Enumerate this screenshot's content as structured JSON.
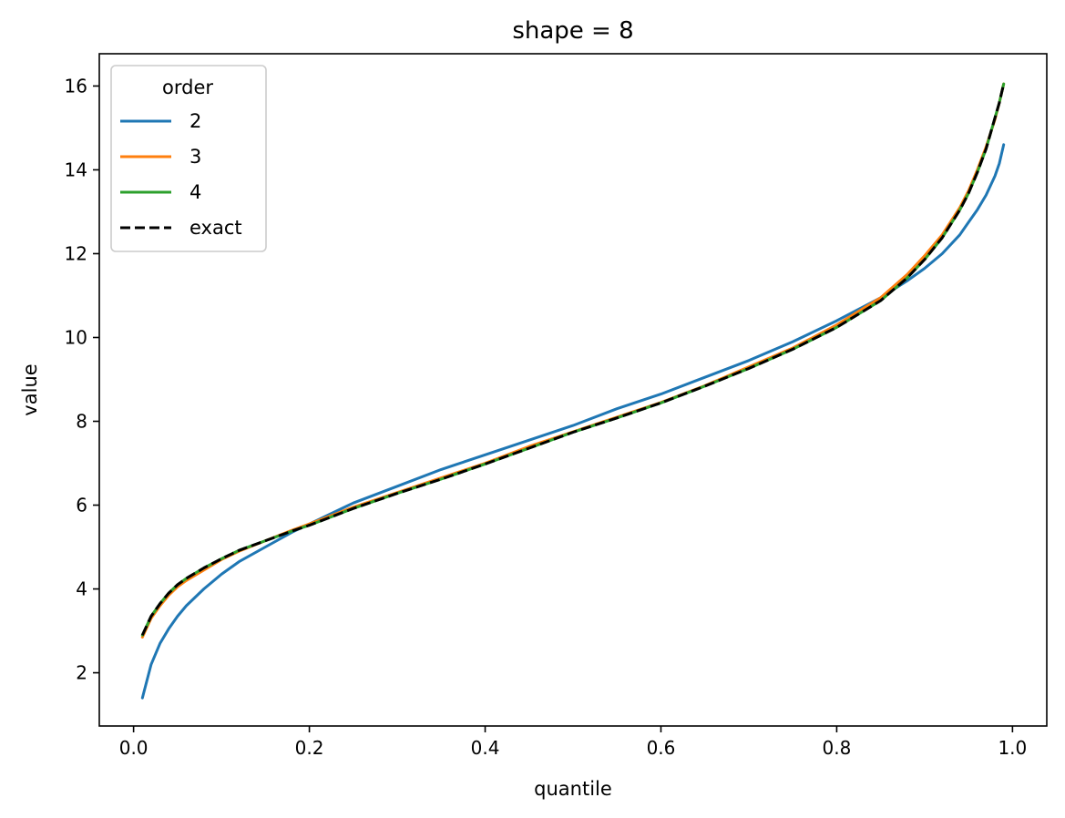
{
  "chart_data": {
    "type": "line",
    "title": "shape = 8",
    "xlabel": "quantile",
    "ylabel": "value",
    "xlim": [
      -0.039,
      1.039
    ],
    "ylim": [
      0.73,
      16.77
    ],
    "xticks": [
      0.0,
      0.2,
      0.4,
      0.6,
      0.8,
      1.0
    ],
    "xtick_labels": [
      "0.0",
      "0.2",
      "0.4",
      "0.6",
      "0.8",
      "1.0"
    ],
    "yticks": [
      2,
      4,
      6,
      8,
      10,
      12,
      14,
      16
    ],
    "ytick_labels": [
      "2",
      "4",
      "6",
      "8",
      "10",
      "12",
      "14",
      "16"
    ],
    "grid": false,
    "legend": {
      "title": "order",
      "position": "top-left"
    },
    "x": [
      0.01,
      0.02,
      0.03,
      0.04,
      0.05,
      0.06,
      0.08,
      0.1,
      0.12,
      0.15,
      0.18,
      0.2,
      0.25,
      0.3,
      0.35,
      0.4,
      0.45,
      0.5,
      0.55,
      0.6,
      0.65,
      0.7,
      0.75,
      0.8,
      0.85,
      0.88,
      0.9,
      0.92,
      0.94,
      0.95,
      0.96,
      0.97,
      0.98,
      0.985,
      0.99
    ],
    "series": [
      {
        "name": "2",
        "color": "#1f77b4",
        "style": "solid",
        "values": [
          1.4,
          2.2,
          2.7,
          3.05,
          3.35,
          3.6,
          4.0,
          4.35,
          4.65,
          5.0,
          5.35,
          5.55,
          6.05,
          6.45,
          6.85,
          7.2,
          7.55,
          7.9,
          8.3,
          8.65,
          9.05,
          9.45,
          9.9,
          10.4,
          10.95,
          11.35,
          11.65,
          12.0,
          12.45,
          12.75,
          13.05,
          13.4,
          13.85,
          14.15,
          14.6
        ]
      },
      {
        "name": "3",
        "color": "#ff7f0e",
        "style": "solid",
        "values": [
          2.85,
          3.3,
          3.6,
          3.85,
          4.05,
          4.2,
          4.45,
          4.7,
          4.9,
          5.15,
          5.4,
          5.55,
          5.95,
          6.3,
          6.65,
          7.0,
          7.4,
          7.75,
          8.1,
          8.45,
          8.85,
          9.3,
          9.75,
          10.3,
          10.95,
          11.5,
          11.95,
          12.45,
          13.1,
          13.5,
          14.0,
          14.55,
          15.2,
          15.6,
          16.05
        ]
      },
      {
        "name": "4",
        "color": "#2ca02c",
        "style": "solid",
        "values": [
          2.9,
          3.35,
          3.65,
          3.9,
          4.1,
          4.25,
          4.5,
          4.72,
          4.92,
          5.15,
          5.38,
          5.52,
          5.92,
          6.28,
          6.62,
          6.98,
          7.36,
          7.74,
          8.08,
          8.44,
          8.84,
          9.26,
          9.72,
          10.24,
          10.88,
          11.42,
          11.86,
          12.38,
          13.04,
          13.44,
          13.94,
          14.5,
          15.24,
          15.6,
          16.05
        ]
      },
      {
        "name": "exact",
        "color": "#000000",
        "style": "dashed",
        "values": [
          2.9,
          3.35,
          3.65,
          3.9,
          4.1,
          4.25,
          4.5,
          4.72,
          4.92,
          5.15,
          5.38,
          5.52,
          5.92,
          6.28,
          6.62,
          6.98,
          7.36,
          7.74,
          8.08,
          8.44,
          8.84,
          9.26,
          9.72,
          10.24,
          10.88,
          11.42,
          11.86,
          12.38,
          13.04,
          13.44,
          13.94,
          14.5,
          15.24,
          15.6,
          16.05
        ]
      }
    ]
  }
}
